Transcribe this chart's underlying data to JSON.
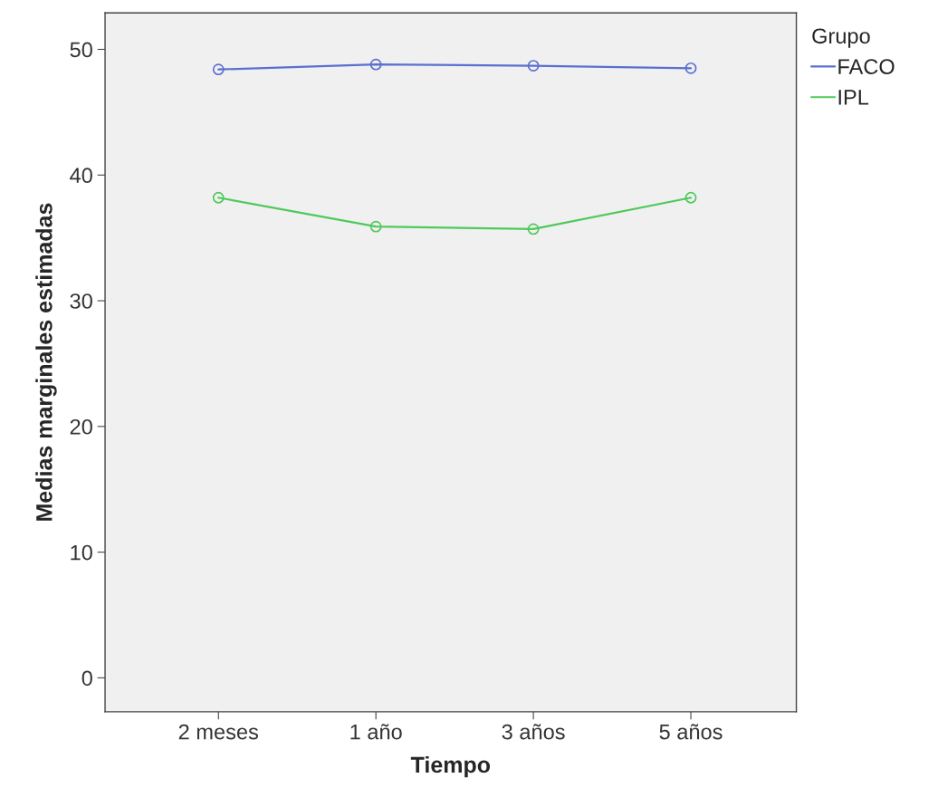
{
  "chart_data": {
    "type": "line",
    "xlabel": "Tiempo",
    "ylabel": "Medias marginales estimadas",
    "legend_title": "Grupo",
    "categories": [
      "2 meses",
      "1 año",
      "3 años",
      "5 años"
    ],
    "series": [
      {
        "name": "FACO",
        "color": "#5b6fd1",
        "values": [
          48.4,
          48.8,
          48.7,
          48.5
        ]
      },
      {
        "name": "IPL",
        "color": "#4fc95c",
        "values": [
          38.2,
          35.9,
          35.7,
          38.2
        ]
      }
    ],
    "ylim": [
      -2.7,
      52.9
    ],
    "yticks": [
      0,
      10,
      20,
      30,
      40,
      50
    ],
    "grid": false,
    "legend": "top right",
    "marker": "circle",
    "line_style": "solid"
  }
}
